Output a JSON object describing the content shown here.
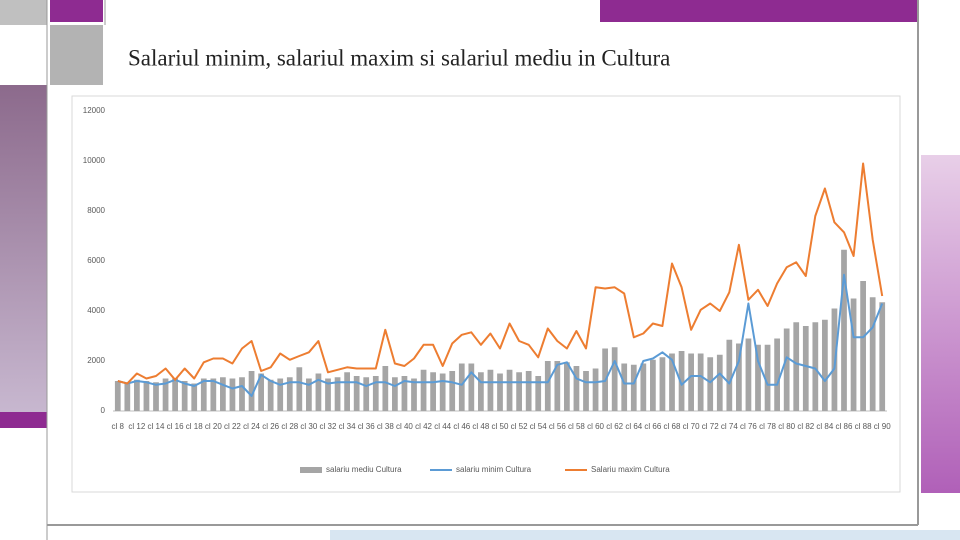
{
  "chart_data": {
    "type": "bar-line",
    "title": "Salariul minim, salariul maxim si salariul mediu in Cultura",
    "categories": [
      "cl 8",
      null,
      "cl 12",
      null,
      "cl 14",
      null,
      "cl 16",
      null,
      "cl 18",
      null,
      "cl 20",
      null,
      "cl 22",
      null,
      "cl 24",
      null,
      "cl 26",
      null,
      "cl 28",
      null,
      "cl 30",
      null,
      "cl 32",
      null,
      "cl 34",
      null,
      "cl 36",
      null,
      "cl 38",
      null,
      "cl 40",
      null,
      "cl 42",
      null,
      "cl 44",
      null,
      "cl 46",
      null,
      "cl 48",
      null,
      "cl 50",
      null,
      "cl 52",
      null,
      "cl 54",
      null,
      "cl 56",
      null,
      "cl 58",
      null,
      "cl 60",
      null,
      "cl 62",
      null,
      "cl 64",
      null,
      "cl 66",
      null,
      "cl 68",
      null,
      "cl 70",
      null,
      "cl 72",
      null,
      "cl 74",
      null,
      "cl 76",
      null,
      "cl 78",
      null,
      "cl 80",
      null,
      "cl 82",
      null,
      "cl 84",
      null,
      "cl 86",
      null,
      "cl 88",
      null,
      "cl 90"
    ],
    "series": [
      {
        "name": "salariu mediu Cultura",
        "kind": "bar",
        "color": "#a5a5a5",
        "values": [
          1200,
          1100,
          1250,
          1200,
          1150,
          1300,
          1300,
          1200,
          1100,
          1300,
          1300,
          1350,
          1300,
          1350,
          1600,
          1500,
          1250,
          1300,
          1350,
          1750,
          1300,
          1500,
          1300,
          1350,
          1550,
          1400,
          1350,
          1400,
          1800,
          1350,
          1400,
          1300,
          1650,
          1550,
          1500,
          1600,
          1900,
          1900,
          1550,
          1650,
          1500,
          1650,
          1550,
          1600,
          1400,
          2000,
          2000,
          1950,
          1800,
          1600,
          1700,
          2500,
          2550,
          1900,
          1850,
          1900,
          2050,
          2150,
          2300,
          2400,
          2300,
          2300,
          2150,
          2250,
          2850,
          2700,
          2900,
          2650,
          2650,
          2900,
          3300,
          3550,
          3400,
          3550,
          3650,
          4100,
          6450,
          4500,
          5200,
          4550,
          4350
        ]
      },
      {
        "name": "salariu minim Cultura",
        "kind": "line",
        "color": "#5b9bd5",
        "values": [
          1200,
          1100,
          1200,
          1150,
          1050,
          1100,
          1250,
          1100,
          1000,
          1200,
          1200,
          1050,
          900,
          1000,
          600,
          1450,
          1200,
          1050,
          1150,
          1150,
          1050,
          1250,
          1100,
          1150,
          1150,
          1150,
          1000,
          1150,
          1150,
          1000,
          1200,
          1150,
          1150,
          1150,
          1200,
          1150,
          1050,
          1550,
          1150,
          1150,
          1150,
          1150,
          1150,
          1150,
          1150,
          1150,
          1850,
          1950,
          1300,
          1150,
          1150,
          1200,
          2000,
          1100,
          1100,
          2000,
          2100,
          2350,
          2050,
          1050,
          1400,
          1400,
          1150,
          1500,
          1100,
          2000,
          4300,
          2000,
          1050,
          1050,
          2150,
          1900,
          1800,
          1700,
          1200,
          1700,
          5450,
          2950,
          2950,
          3350,
          4300
        ]
      },
      {
        "name": "Salariu maxim Cultura",
        "kind": "line",
        "color": "#ed7d31",
        "values": [
          1200,
          1100,
          1500,
          1300,
          1400,
          1700,
          1250,
          1700,
          1300,
          1950,
          2100,
          2100,
          1900,
          2500,
          2800,
          1600,
          1750,
          2300,
          2050,
          2200,
          2350,
          2800,
          1550,
          1650,
          1750,
          1700,
          1700,
          1700,
          3250,
          1900,
          1800,
          2100,
          2650,
          2650,
          1800,
          2700,
          3050,
          3150,
          2650,
          3100,
          2500,
          3500,
          2800,
          2650,
          2150,
          3300,
          2800,
          2500,
          3200,
          2500,
          4950,
          4900,
          4950,
          4700,
          2950,
          3100,
          3500,
          3400,
          5900,
          4950,
          3250,
          4050,
          4300,
          4000,
          4750,
          6650,
          4450,
          4850,
          4200,
          5100,
          5750,
          5950,
          5400,
          7800,
          8900,
          7550,
          7150,
          6200,
          9900,
          6850,
          4600
        ]
      }
    ],
    "ylim": [
      0,
      12000
    ],
    "yticks": [
      0,
      2000,
      4000,
      6000,
      8000,
      10000,
      12000
    ],
    "grid": false,
    "legend": "bottom"
  }
}
